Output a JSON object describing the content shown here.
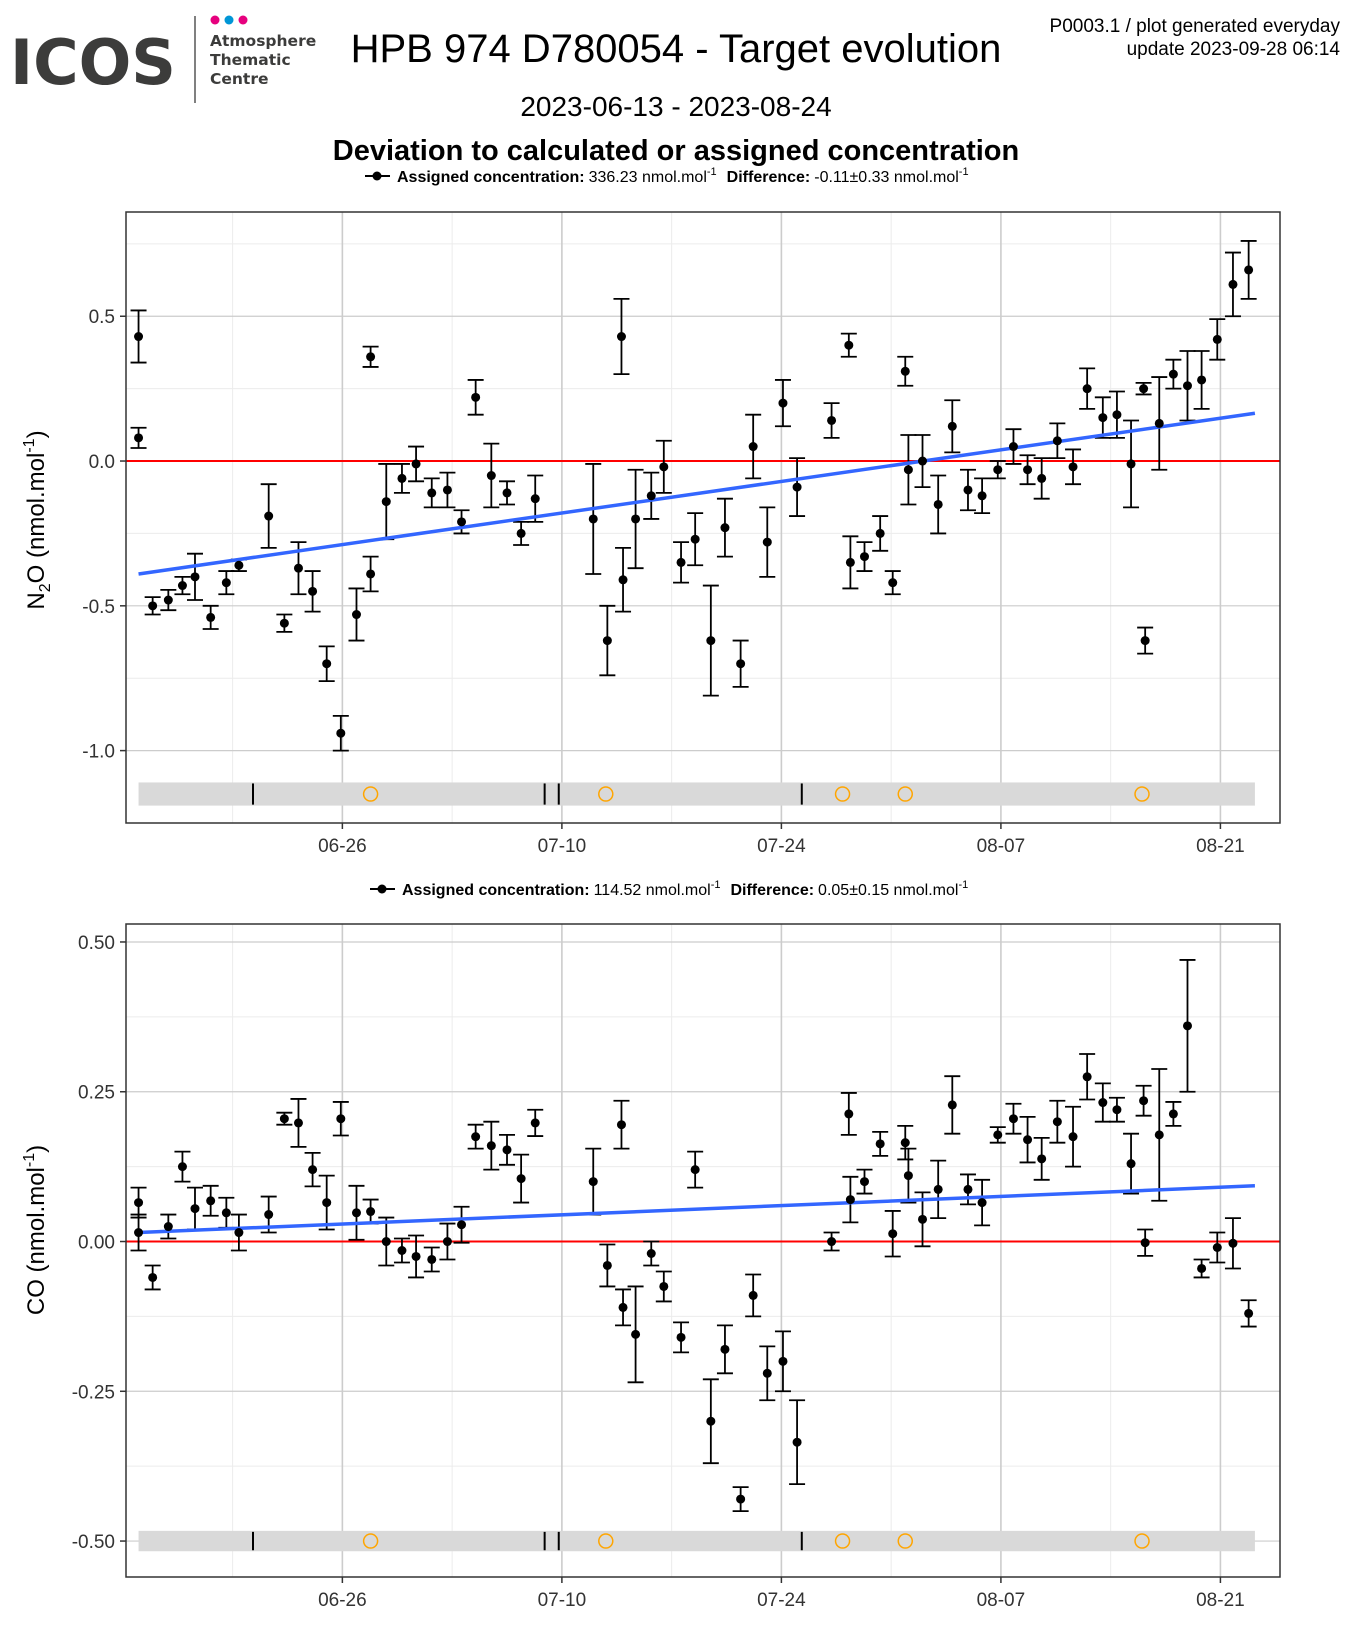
{
  "logo": {
    "brand": "ICOS",
    "line1": "Atmosphere",
    "line2": "Thematic",
    "line3": "Centre",
    "dot_colors": [
      "#e6007e",
      "#0096d6",
      "#e6007e"
    ]
  },
  "header": {
    "title": "HPB 974 D780054 - Target evolution",
    "subtitle": "2023-06-13 - 2023-08-24",
    "heading": "Deviation to calculated or assigned concentration",
    "corner_line1": "P0003.1 / plot generated everyday",
    "corner_line2": "update  2023-09-28 06:14"
  },
  "colors": {
    "points": "#000000",
    "trend": "#3366ff",
    "zero_line": "#ff0000",
    "flag_band": "#d9d9d9",
    "flag_circle": "#ffa500",
    "grid_major": "#cccccc",
    "grid_minor": "#ececec"
  },
  "chart_data": [
    {
      "type": "scatter",
      "ylabel": "N2O (nmol.mol-1)",
      "ylabel_main": "N",
      "ylabel_sub": "2",
      "ylabel_rest": "O (nmol.mol",
      "ylabel_sup": "-1",
      "ylabel_end": ")",
      "legend": {
        "label": "Assigned concentration:",
        "value": "336.23 nmol.mol",
        "sup": "-1",
        "diff_label": "Difference:",
        "diff_value": "-0.11±0.33 nmol.mol",
        "diff_sup": "-1"
      },
      "x_ticks": [
        "06-26",
        "07-10",
        "07-24",
        "08-07",
        "08-21"
      ],
      "x_tick_days": [
        13,
        27,
        41,
        55,
        69
      ],
      "xlim_days": [
        -0.8,
        72.8
      ],
      "ylim": [
        -1.25,
        0.86
      ],
      "y_ticks": [
        0.5,
        0.0,
        -0.5,
        -1.0
      ],
      "y_tick_labels": [
        "0.5",
        "0.0",
        "-0.5",
        "-1.0"
      ],
      "trend": {
        "start": [
          0.0,
          -0.39
        ],
        "end": [
          71.2,
          0.165
        ]
      },
      "flag_band_y": [
        -1.19,
        -1.11
      ],
      "flag_ticks_days": [
        7.3,
        25.9,
        26.8,
        42.3
      ],
      "flag_circles_days": [
        14.8,
        29.8,
        44.9,
        48.9,
        64.0
      ],
      "points": [
        {
          "x": 0.0,
          "y": 0.43,
          "e": 0.09
        },
        {
          "x": 0.0,
          "y": 0.08,
          "e": 0.035
        },
        {
          "x": 0.9,
          "y": -0.5,
          "e": 0.03
        },
        {
          "x": 1.9,
          "y": -0.48,
          "e": 0.035
        },
        {
          "x": 2.8,
          "y": -0.43,
          "e": 0.03
        },
        {
          "x": 3.6,
          "y": -0.4,
          "e": 0.08
        },
        {
          "x": 4.6,
          "y": -0.54,
          "e": 0.04
        },
        {
          "x": 5.6,
          "y": -0.42,
          "e": 0.04
        },
        {
          "x": 6.4,
          "y": -0.36,
          "e": 0.02
        },
        {
          "x": 8.3,
          "y": -0.19,
          "e": 0.11
        },
        {
          "x": 9.3,
          "y": -0.56,
          "e": 0.03
        },
        {
          "x": 10.2,
          "y": -0.37,
          "e": 0.09
        },
        {
          "x": 11.1,
          "y": -0.45,
          "e": 0.07
        },
        {
          "x": 12.0,
          "y": -0.7,
          "e": 0.06
        },
        {
          "x": 12.9,
          "y": -0.94,
          "e": 0.06
        },
        {
          "x": 13.9,
          "y": -0.53,
          "e": 0.09
        },
        {
          "x": 14.8,
          "y": -0.39,
          "e": 0.06
        },
        {
          "x": 14.8,
          "y": 0.36,
          "e": 0.035
        },
        {
          "x": 15.8,
          "y": -0.14,
          "e": 0.13
        },
        {
          "x": 16.8,
          "y": -0.06,
          "e": 0.05
        },
        {
          "x": 17.7,
          "y": -0.01,
          "e": 0.06
        },
        {
          "x": 18.7,
          "y": -0.11,
          "e": 0.05
        },
        {
          "x": 19.7,
          "y": -0.1,
          "e": 0.06
        },
        {
          "x": 20.6,
          "y": -0.21,
          "e": 0.04
        },
        {
          "x": 21.5,
          "y": 0.22,
          "e": 0.06
        },
        {
          "x": 22.5,
          "y": -0.05,
          "e": 0.11
        },
        {
          "x": 23.5,
          "y": -0.11,
          "e": 0.04
        },
        {
          "x": 24.4,
          "y": -0.25,
          "e": 0.04
        },
        {
          "x": 25.3,
          "y": -0.13,
          "e": 0.08
        },
        {
          "x": 29.0,
          "y": -0.2,
          "e": 0.19
        },
        {
          "x": 29.9,
          "y": -0.62,
          "e": 0.12
        },
        {
          "x": 30.8,
          "y": 0.43,
          "e": 0.13
        },
        {
          "x": 30.9,
          "y": -0.41,
          "e": 0.11
        },
        {
          "x": 31.7,
          "y": -0.2,
          "e": 0.17
        },
        {
          "x": 32.7,
          "y": -0.12,
          "e": 0.08
        },
        {
          "x": 33.5,
          "y": -0.02,
          "e": 0.09
        },
        {
          "x": 34.6,
          "y": -0.35,
          "e": 0.07
        },
        {
          "x": 35.5,
          "y": -0.27,
          "e": 0.09
        },
        {
          "x": 36.5,
          "y": -0.62,
          "e": 0.19
        },
        {
          "x": 37.4,
          "y": -0.23,
          "e": 0.1
        },
        {
          "x": 38.4,
          "y": -0.7,
          "e": 0.08
        },
        {
          "x": 39.2,
          "y": 0.05,
          "e": 0.11
        },
        {
          "x": 40.1,
          "y": -0.28,
          "e": 0.12
        },
        {
          "x": 41.1,
          "y": 0.2,
          "e": 0.08
        },
        {
          "x": 42.0,
          "y": -0.09,
          "e": 0.1
        },
        {
          "x": 44.2,
          "y": 0.14,
          "e": 0.06
        },
        {
          "x": 45.3,
          "y": 0.4,
          "e": 0.04
        },
        {
          "x": 45.4,
          "y": -0.35,
          "e": 0.09
        },
        {
          "x": 46.3,
          "y": -0.33,
          "e": 0.05
        },
        {
          "x": 47.3,
          "y": -0.25,
          "e": 0.06
        },
        {
          "x": 48.1,
          "y": -0.42,
          "e": 0.04
        },
        {
          "x": 48.9,
          "y": 0.31,
          "e": 0.05
        },
        {
          "x": 49.1,
          "y": -0.03,
          "e": 0.12
        },
        {
          "x": 50.0,
          "y": 0.0,
          "e": 0.09
        },
        {
          "x": 51.0,
          "y": -0.15,
          "e": 0.1
        },
        {
          "x": 51.9,
          "y": 0.12,
          "e": 0.09
        },
        {
          "x": 52.9,
          "y": -0.1,
          "e": 0.07
        },
        {
          "x": 53.8,
          "y": -0.12,
          "e": 0.06
        },
        {
          "x": 54.8,
          "y": -0.03,
          "e": 0.03
        },
        {
          "x": 55.8,
          "y": 0.05,
          "e": 0.06
        },
        {
          "x": 56.7,
          "y": -0.03,
          "e": 0.05
        },
        {
          "x": 57.6,
          "y": -0.06,
          "e": 0.07
        },
        {
          "x": 58.6,
          "y": 0.07,
          "e": 0.06
        },
        {
          "x": 59.6,
          "y": -0.02,
          "e": 0.06
        },
        {
          "x": 60.5,
          "y": 0.25,
          "e": 0.07
        },
        {
          "x": 61.5,
          "y": 0.15,
          "e": 0.07
        },
        {
          "x": 62.4,
          "y": 0.16,
          "e": 0.08
        },
        {
          "x": 63.3,
          "y": -0.01,
          "e": 0.15
        },
        {
          "x": 64.1,
          "y": 0.25,
          "e": 0.02
        },
        {
          "x": 64.2,
          "y": -0.62,
          "e": 0.045
        },
        {
          "x": 65.1,
          "y": 0.13,
          "e": 0.16
        },
        {
          "x": 66.0,
          "y": 0.3,
          "e": 0.05
        },
        {
          "x": 66.9,
          "y": 0.26,
          "e": 0.12
        },
        {
          "x": 67.8,
          "y": 0.28,
          "e": 0.1
        },
        {
          "x": 68.8,
          "y": 0.42,
          "e": 0.07
        },
        {
          "x": 69.8,
          "y": 0.61,
          "e": 0.11
        },
        {
          "x": 70.8,
          "y": 0.66,
          "e": 0.1
        }
      ]
    },
    {
      "type": "scatter",
      "ylabel": "CO (nmol.mol-1)",
      "ylabel_main": "CO (nmol.mol",
      "ylabel_sub": "",
      "ylabel_rest": "",
      "ylabel_sup": "-1",
      "ylabel_end": ")",
      "legend": {
        "label": "Assigned concentration:",
        "value": "114.52 nmol.mol",
        "sup": "-1",
        "diff_label": "Difference:",
        "diff_value": "0.05±0.15 nmol.mol",
        "diff_sup": "-1"
      },
      "x_ticks": [
        "06-26",
        "07-10",
        "07-24",
        "08-07",
        "08-21"
      ],
      "x_tick_days": [
        13,
        27,
        41,
        55,
        69
      ],
      "xlim_days": [
        -0.8,
        72.8
      ],
      "ylim": [
        -0.56,
        0.53
      ],
      "y_ticks": [
        0.5,
        0.25,
        0.0,
        -0.25,
        -0.5
      ],
      "y_tick_labels": [
        "0.50",
        "0.25",
        "0.00",
        "-0.25",
        "-0.50"
      ],
      "trend": {
        "start": [
          0.0,
          0.015
        ],
        "end": [
          71.2,
          0.093
        ]
      },
      "flag_band_y": [
        -0.517,
        -0.483
      ],
      "flag_ticks_days": [
        7.3,
        25.9,
        26.8,
        42.3
      ],
      "flag_circles_days": [
        14.8,
        29.8,
        44.9,
        48.9,
        64.0
      ],
      "points": [
        {
          "x": 0.0,
          "y": 0.065,
          "e": 0.025
        },
        {
          "x": 0.0,
          "y": 0.015,
          "e": 0.03
        },
        {
          "x": 0.9,
          "y": -0.06,
          "e": 0.02
        },
        {
          "x": 1.9,
          "y": 0.025,
          "e": 0.02
        },
        {
          "x": 2.8,
          "y": 0.125,
          "e": 0.025
        },
        {
          "x": 3.6,
          "y": 0.055,
          "e": 0.035
        },
        {
          "x": 4.6,
          "y": 0.068,
          "e": 0.025
        },
        {
          "x": 5.6,
          "y": 0.048,
          "e": 0.025
        },
        {
          "x": 6.4,
          "y": 0.015,
          "e": 0.03
        },
        {
          "x": 8.3,
          "y": 0.045,
          "e": 0.03
        },
        {
          "x": 9.3,
          "y": 0.205,
          "e": 0.01
        },
        {
          "x": 10.2,
          "y": 0.198,
          "e": 0.04
        },
        {
          "x": 11.1,
          "y": 0.12,
          "e": 0.028
        },
        {
          "x": 12.0,
          "y": 0.065,
          "e": 0.045
        },
        {
          "x": 12.9,
          "y": 0.205,
          "e": 0.028
        },
        {
          "x": 13.9,
          "y": 0.048,
          "e": 0.045
        },
        {
          "x": 14.8,
          "y": 0.05,
          "e": 0.02
        },
        {
          "x": 15.8,
          "y": 0.0,
          "e": 0.04
        },
        {
          "x": 16.8,
          "y": -0.015,
          "e": 0.02
        },
        {
          "x": 17.7,
          "y": -0.025,
          "e": 0.035
        },
        {
          "x": 18.7,
          "y": -0.03,
          "e": 0.02
        },
        {
          "x": 19.7,
          "y": 0.0,
          "e": 0.03
        },
        {
          "x": 20.6,
          "y": 0.028,
          "e": 0.03
        },
        {
          "x": 21.5,
          "y": 0.175,
          "e": 0.02
        },
        {
          "x": 22.5,
          "y": 0.16,
          "e": 0.04
        },
        {
          "x": 23.5,
          "y": 0.153,
          "e": 0.025
        },
        {
          "x": 24.4,
          "y": 0.105,
          "e": 0.04
        },
        {
          "x": 25.3,
          "y": 0.198,
          "e": 0.022
        },
        {
          "x": 29.0,
          "y": 0.1,
          "e": 0.055
        },
        {
          "x": 29.9,
          "y": -0.04,
          "e": 0.035
        },
        {
          "x": 30.8,
          "y": 0.195,
          "e": 0.04
        },
        {
          "x": 30.9,
          "y": -0.11,
          "e": 0.03
        },
        {
          "x": 31.7,
          "y": -0.155,
          "e": 0.08
        },
        {
          "x": 32.7,
          "y": -0.02,
          "e": 0.02
        },
        {
          "x": 33.5,
          "y": -0.075,
          "e": 0.025
        },
        {
          "x": 34.6,
          "y": -0.16,
          "e": 0.025
        },
        {
          "x": 35.5,
          "y": 0.12,
          "e": 0.03
        },
        {
          "x": 36.5,
          "y": -0.3,
          "e": 0.07
        },
        {
          "x": 37.4,
          "y": -0.18,
          "e": 0.04
        },
        {
          "x": 38.4,
          "y": -0.43,
          "e": 0.02
        },
        {
          "x": 39.2,
          "y": -0.09,
          "e": 0.035
        },
        {
          "x": 40.1,
          "y": -0.22,
          "e": 0.045
        },
        {
          "x": 41.1,
          "y": -0.2,
          "e": 0.05
        },
        {
          "x": 42.0,
          "y": -0.335,
          "e": 0.07
        },
        {
          "x": 44.2,
          "y": 0.0,
          "e": 0.015
        },
        {
          "x": 45.3,
          "y": 0.213,
          "e": 0.035
        },
        {
          "x": 45.4,
          "y": 0.07,
          "e": 0.038
        },
        {
          "x": 46.3,
          "y": 0.1,
          "e": 0.02
        },
        {
          "x": 47.3,
          "y": 0.163,
          "e": 0.02
        },
        {
          "x": 48.1,
          "y": 0.013,
          "e": 0.038
        },
        {
          "x": 48.9,
          "y": 0.165,
          "e": 0.028
        },
        {
          "x": 49.1,
          "y": 0.11,
          "e": 0.045
        },
        {
          "x": 50.0,
          "y": 0.037,
          "e": 0.045
        },
        {
          "x": 51.0,
          "y": 0.087,
          "e": 0.048
        },
        {
          "x": 51.9,
          "y": 0.228,
          "e": 0.048
        },
        {
          "x": 52.9,
          "y": 0.087,
          "e": 0.025
        },
        {
          "x": 53.8,
          "y": 0.065,
          "e": 0.038
        },
        {
          "x": 54.8,
          "y": 0.178,
          "e": 0.013
        },
        {
          "x": 55.8,
          "y": 0.205,
          "e": 0.025
        },
        {
          "x": 56.7,
          "y": 0.17,
          "e": 0.038
        },
        {
          "x": 57.6,
          "y": 0.138,
          "e": 0.035
        },
        {
          "x": 58.6,
          "y": 0.2,
          "e": 0.035
        },
        {
          "x": 59.6,
          "y": 0.175,
          "e": 0.05
        },
        {
          "x": 60.5,
          "y": 0.275,
          "e": 0.038
        },
        {
          "x": 61.5,
          "y": 0.232,
          "e": 0.032
        },
        {
          "x": 62.4,
          "y": 0.22,
          "e": 0.02
        },
        {
          "x": 63.3,
          "y": 0.13,
          "e": 0.05
        },
        {
          "x": 64.1,
          "y": 0.235,
          "e": 0.025
        },
        {
          "x": 64.2,
          "y": -0.002,
          "e": 0.022
        },
        {
          "x": 65.1,
          "y": 0.178,
          "e": 0.11
        },
        {
          "x": 66.0,
          "y": 0.213,
          "e": 0.02
        },
        {
          "x": 66.9,
          "y": 0.36,
          "e": 0.11
        },
        {
          "x": 67.8,
          "y": -0.045,
          "e": 0.015
        },
        {
          "x": 68.8,
          "y": -0.01,
          "e": 0.025
        },
        {
          "x": 69.8,
          "y": -0.003,
          "e": 0.042
        },
        {
          "x": 70.8,
          "y": -0.12,
          "e": 0.022
        }
      ]
    }
  ]
}
